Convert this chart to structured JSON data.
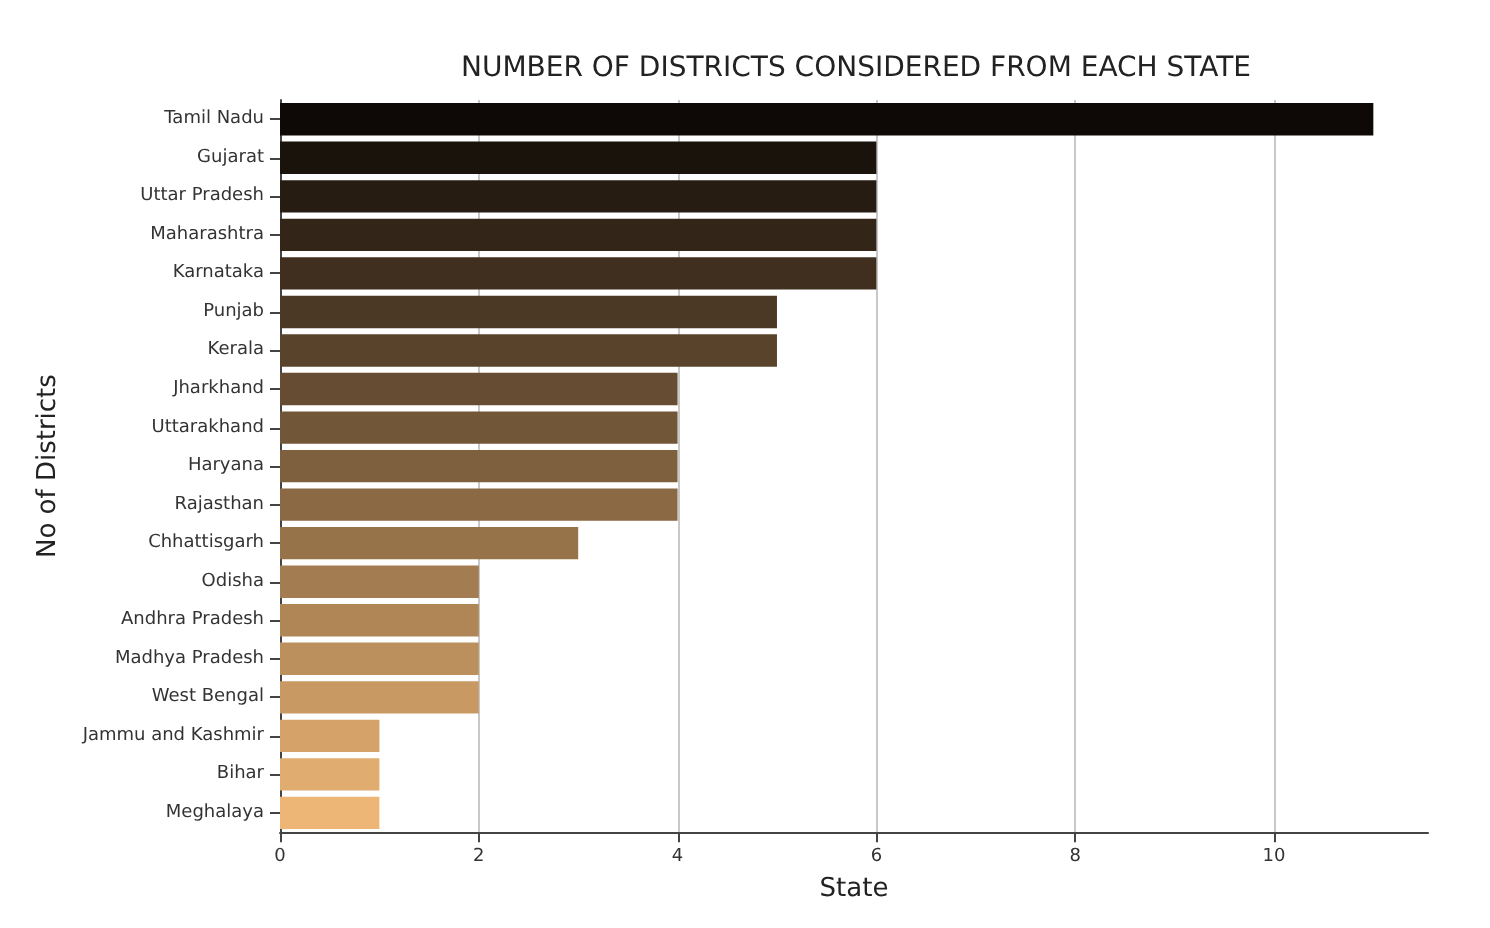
{
  "chart_data": {
    "type": "bar",
    "orientation": "horizontal",
    "title": "NUMBER OF DISTRICTS CONSIDERED FROM EACH STATE",
    "xlabel": "State",
    "ylabel": "No of Districts",
    "categories": [
      "Tamil Nadu",
      "Gujarat",
      "Uttar Pradesh",
      "Maharashtra",
      "Karnataka",
      "Punjab",
      "Kerala",
      "Jharkhand",
      "Uttarakhand",
      "Haryana",
      "Rajasthan",
      "Chhattisgarh",
      "Odisha",
      "Andhra Pradesh",
      "Madhya Pradesh",
      "West Bengal",
      "Jammu and Kashmir",
      "Bihar",
      "Meghalaya"
    ],
    "values": [
      11,
      6,
      6,
      6,
      6,
      5,
      5,
      4,
      4,
      4,
      4,
      3,
      2,
      2,
      2,
      2,
      1,
      1,
      1
    ],
    "colors": [
      "#0e0906",
      "#1a130c",
      "#271c12",
      "#332619",
      "#402f1f",
      "#4c3925",
      "#59432b",
      "#654c32",
      "#725638",
      "#7e603e",
      "#8a6944",
      "#97734a",
      "#a37c51",
      "#b08657",
      "#bc905d",
      "#c89963",
      "#d5a36a",
      "#e1ac70",
      "#eeb676"
    ],
    "xlim": [
      0,
      11.55
    ],
    "xticks": [
      0,
      2,
      4,
      6,
      8,
      10
    ],
    "grid": "x"
  }
}
